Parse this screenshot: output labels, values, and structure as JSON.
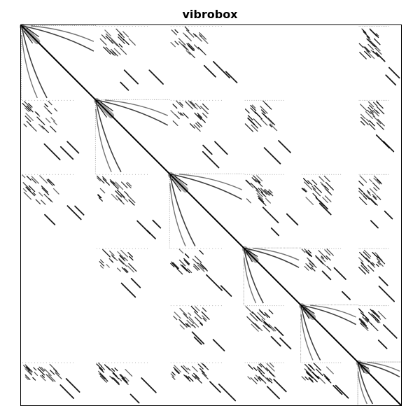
{
  "chart_data": {
    "type": "heatmap",
    "title": "vibrobox",
    "xlabel": "",
    "ylabel": "",
    "grid": false,
    "legend": "none",
    "colors": {
      "nonzero": "#000000",
      "background": "#ffffff",
      "frame": "#000000"
    },
    "matrix_kind": "sparsity pattern",
    "dimension": [
      12328,
      12328
    ],
    "block_boundaries_fraction": [
      0.0,
      0.195,
      0.39,
      0.585,
      0.735,
      0.885,
      1.0
    ],
    "main_diagonal": true
  }
}
